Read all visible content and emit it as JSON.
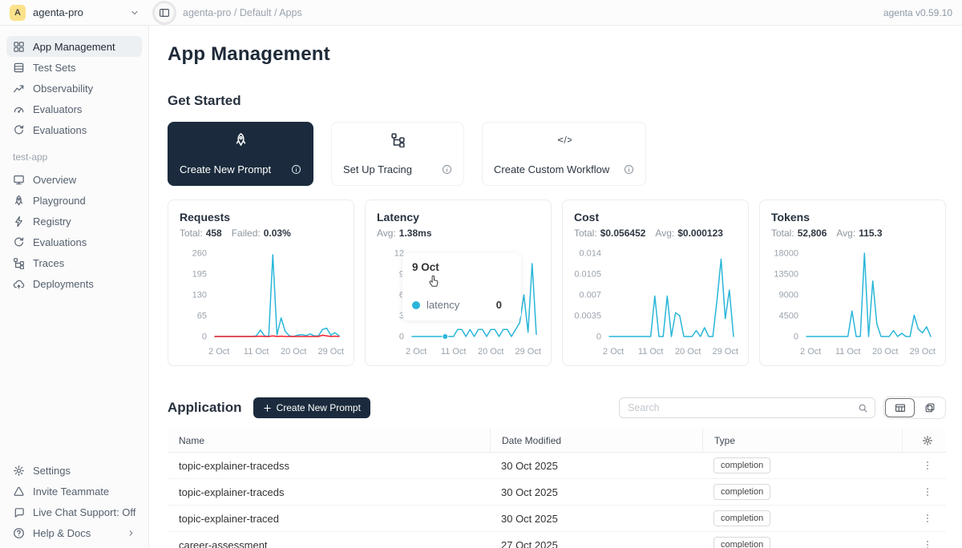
{
  "topbar": {
    "avatar_letter": "A",
    "workspace": "agenta-pro",
    "breadcrumb": "agenta-pro / Default / Apps",
    "version": "agenta v0.59.10"
  },
  "sidebar": {
    "main_items": [
      {
        "label": "App Management",
        "icon": "grid",
        "active": true
      },
      {
        "label": "Test Sets",
        "icon": "testsets"
      },
      {
        "label": "Observability",
        "icon": "observability"
      },
      {
        "label": "Evaluators",
        "icon": "gauge"
      },
      {
        "label": "Evaluations",
        "icon": "evaluations"
      }
    ],
    "section_label": "test-app",
    "app_items": [
      {
        "label": "Overview",
        "icon": "monitor"
      },
      {
        "label": "Playground",
        "icon": "rocket"
      },
      {
        "label": "Registry",
        "icon": "bolt"
      },
      {
        "label": "Evaluations",
        "icon": "evaluations"
      },
      {
        "label": "Traces",
        "icon": "tree"
      },
      {
        "label": "Deployments",
        "icon": "cloud"
      }
    ],
    "footer_items": [
      {
        "label": "Settings",
        "icon": "gear"
      },
      {
        "label": "Invite Teammate",
        "icon": "triangle"
      },
      {
        "label": "Live Chat Support: Off",
        "icon": "chat"
      },
      {
        "label": "Help & Docs",
        "icon": "help",
        "chevron": true
      }
    ]
  },
  "page": {
    "title": "App Management",
    "get_started": "Get Started",
    "application": "Application"
  },
  "get_started_cards": [
    {
      "label": "Create New Prompt",
      "icon": "rocket",
      "variant": "dark"
    },
    {
      "label": "Set Up Tracing",
      "icon": "tree",
      "variant": "light"
    },
    {
      "label": "Create Custom Workflow",
      "icon": "code",
      "variant": "light"
    }
  ],
  "application": {
    "create_button": "Create New Prompt",
    "search_placeholder": "Search"
  },
  "table": {
    "columns": [
      "Name",
      "Date Modified",
      "Type"
    ],
    "rows": [
      {
        "name": "topic-explainer-tracedss",
        "date": "30 Oct 2025",
        "type": "completion"
      },
      {
        "name": "topic-explainer-traceds",
        "date": "30 Oct 2025",
        "type": "completion"
      },
      {
        "name": "topic-explainer-traced",
        "date": "30 Oct 2025",
        "type": "completion"
      },
      {
        "name": "career-assessment",
        "date": "27 Oct 2025",
        "type": "completion"
      }
    ]
  },
  "tooltip": {
    "chart_index": 1,
    "date": "9 Oct",
    "series": "latency",
    "value": "0"
  },
  "colors": {
    "accent": "#2ab6d9",
    "danger": "#f5222d",
    "dark_navy": "#1b2b3d",
    "avatar_bg": "#fbe28a"
  },
  "chart_data": [
    {
      "type": "line",
      "key": "requests",
      "title": "Requests",
      "stats": [
        {
          "label": "Total:",
          "value": "458"
        },
        {
          "label": "Failed:",
          "value": "0.03%"
        }
      ],
      "x_domain": [
        1,
        31
      ],
      "x_ticks": [
        {
          "label": "2 Oct",
          "day": 2
        },
        {
          "label": "11 Oct",
          "day": 11
        },
        {
          "label": "20 Oct",
          "day": 20
        },
        {
          "label": "29 Oct",
          "day": 29
        }
      ],
      "ylim": [
        0,
        260
      ],
      "y_ticks": [
        {
          "label": "0",
          "value": 0
        },
        {
          "label": "65",
          "value": 65
        },
        {
          "label": "130",
          "value": 130
        },
        {
          "label": "195",
          "value": 195
        },
        {
          "label": "260",
          "value": 260
        }
      ],
      "series": [
        {
          "name": "requests",
          "color": "#2ab6d9",
          "values": [
            0,
            0,
            0,
            0,
            0,
            0,
            0,
            0,
            0,
            0,
            2,
            20,
            2,
            0,
            255,
            5,
            58,
            16,
            2,
            0,
            4,
            6,
            3,
            8,
            2,
            2,
            22,
            26,
            4,
            12,
            2
          ]
        },
        {
          "name": "failed",
          "color": "#f5222d",
          "values": [
            0,
            0,
            0,
            0,
            0,
            0,
            0,
            0,
            0,
            0,
            0,
            1,
            0,
            0,
            2,
            0,
            1,
            0,
            0,
            0,
            0,
            0,
            0,
            0,
            0,
            0,
            4,
            2,
            0,
            1,
            0
          ]
        }
      ]
    },
    {
      "type": "line",
      "key": "latency",
      "title": "Latency",
      "stats": [
        {
          "label": "Avg:",
          "value": "1.38ms"
        }
      ],
      "x_domain": [
        1,
        31
      ],
      "x_ticks": [
        {
          "label": "2 Oct",
          "day": 2
        },
        {
          "label": "11 Oct",
          "day": 11
        },
        {
          "label": "20 Oct",
          "day": 20
        },
        {
          "label": "29 Oct",
          "day": 29
        }
      ],
      "ylim": [
        0,
        12
      ],
      "y_ticks": [
        {
          "label": "0",
          "value": 0
        },
        {
          "label": "3",
          "value": 3
        },
        {
          "label": "6",
          "value": 6
        },
        {
          "label": "9",
          "value": 9
        },
        {
          "label": "12",
          "value": 12
        }
      ],
      "hover_marker": {
        "day": 9,
        "value": 0
      },
      "series": [
        {
          "name": "latency",
          "color": "#2ab6d9",
          "values": [
            0,
            0,
            0,
            0,
            0,
            0,
            0,
            0,
            0,
            0,
            0,
            1,
            1,
            0,
            1,
            0,
            1,
            1,
            0,
            1,
            1,
            0,
            1,
            1,
            0,
            1,
            2,
            6,
            0.6,
            10.5,
            0.3
          ]
        }
      ]
    },
    {
      "type": "line",
      "key": "cost",
      "title": "Cost",
      "stats": [
        {
          "label": "Total:",
          "value": "$0.056452"
        },
        {
          "label": "Avg:",
          "value": "$0.000123"
        }
      ],
      "x_domain": [
        1,
        31
      ],
      "x_ticks": [
        {
          "label": "2 Oct",
          "day": 2
        },
        {
          "label": "11 Oct",
          "day": 11
        },
        {
          "label": "20 Oct",
          "day": 20
        },
        {
          "label": "29 Oct",
          "day": 29
        }
      ],
      "ylim": [
        0,
        0.014
      ],
      "y_ticks": [
        {
          "label": "0",
          "value": 0
        },
        {
          "label": "0.0035",
          "value": 0.0035
        },
        {
          "label": "0.007",
          "value": 0.007
        },
        {
          "label": "0.0105",
          "value": 0.0105
        },
        {
          "label": "0.014",
          "value": 0.014
        }
      ],
      "series": [
        {
          "name": "cost",
          "color": "#2ab6d9",
          "values": [
            0,
            0,
            0,
            0,
            0,
            0,
            0,
            0,
            0,
            0,
            0,
            0.0068,
            0,
            0,
            0.0068,
            0,
            0.004,
            0.0035,
            0,
            0,
            0,
            0.001,
            0,
            0.0015,
            0,
            0,
            0.006,
            0.013,
            0.003,
            0.0078,
            0
          ]
        }
      ]
    },
    {
      "type": "line",
      "key": "tokens",
      "title": "Tokens",
      "stats": [
        {
          "label": "Total:",
          "value": "52,806"
        },
        {
          "label": "Avg:",
          "value": "115.3"
        }
      ],
      "x_domain": [
        1,
        31
      ],
      "x_ticks": [
        {
          "label": "2 Oct",
          "day": 2
        },
        {
          "label": "11 Oct",
          "day": 11
        },
        {
          "label": "20 Oct",
          "day": 20
        },
        {
          "label": "29 Oct",
          "day": 29
        }
      ],
      "ylim": [
        0,
        18000
      ],
      "y_ticks": [
        {
          "label": "0",
          "value": 0
        },
        {
          "label": "4500",
          "value": 4500
        },
        {
          "label": "9000",
          "value": 9000
        },
        {
          "label": "13500",
          "value": 13500
        },
        {
          "label": "18000",
          "value": 18000
        }
      ],
      "series": [
        {
          "name": "tokens",
          "color": "#2ab6d9",
          "values": [
            0,
            0,
            0,
            0,
            0,
            0,
            0,
            0,
            0,
            0,
            0,
            5500,
            0,
            0,
            18000,
            0,
            12000,
            2700,
            0,
            0,
            0,
            1300,
            0,
            700,
            0,
            0,
            4600,
            1600,
            800,
            2100,
            0
          ]
        }
      ]
    }
  ]
}
